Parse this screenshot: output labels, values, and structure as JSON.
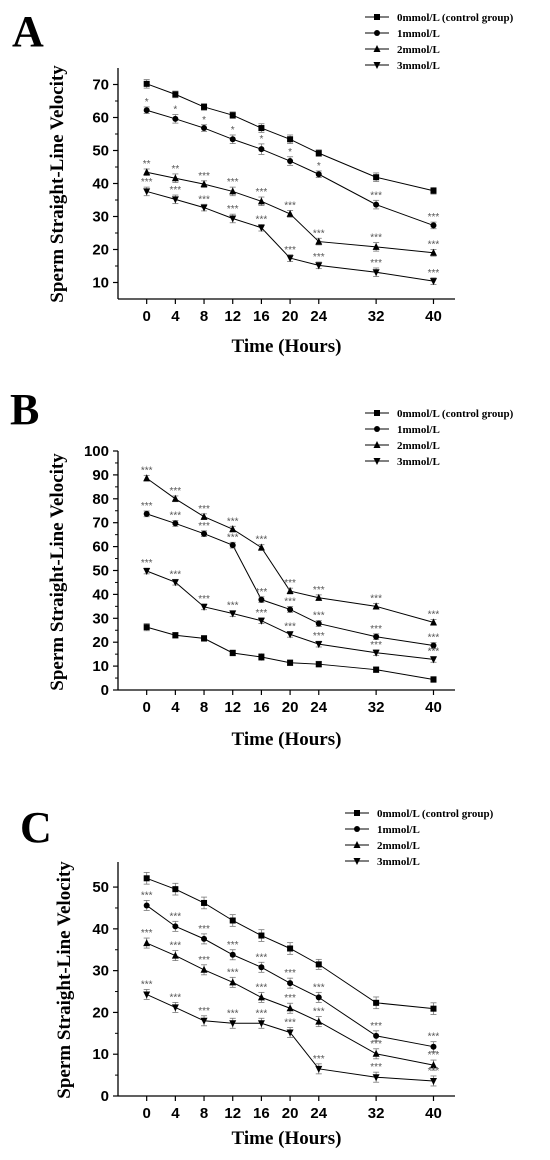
{
  "chart_data": [
    {
      "type": "line",
      "panel_label": "A",
      "xlabel": "Time (Hours)",
      "ylabel": "Sperm Straight-Line Velocity",
      "x": [
        0,
        4,
        8,
        12,
        16,
        20,
        24,
        32,
        40
      ],
      "x_ticks": [
        0,
        4,
        8,
        12,
        16,
        20,
        24,
        32,
        40
      ],
      "xlim": [
        -4,
        43
      ],
      "ylim": [
        5,
        75
      ],
      "y_ticks": [
        10,
        20,
        30,
        40,
        50,
        60,
        70
      ],
      "legend_position": "top-right",
      "series": [
        {
          "name": "0mmol/L (control group)",
          "marker": "square",
          "values": [
            70.2,
            67.0,
            63.2,
            60.7,
            56.8,
            53.4,
            49.2,
            41.9,
            37.8
          ],
          "errors": [
            1.3,
            1.0,
            1.0,
            1.0,
            1.3,
            1.3,
            1.0,
            1.3,
            1.0
          ],
          "annotations": [
            "",
            "",
            "",
            "",
            "",
            "",
            "",
            "",
            ""
          ]
        },
        {
          "name": "1mmol/L",
          "marker": "circle",
          "values": [
            62.2,
            59.6,
            56.8,
            53.4,
            50.4,
            46.8,
            42.8,
            33.6,
            27.3
          ],
          "errors": [
            1.0,
            1.3,
            1.0,
            1.3,
            1.6,
            1.3,
            1.0,
            1.3,
            1.0
          ],
          "annotations": [
            "*",
            "*",
            "*",
            "*",
            "*",
            "*",
            "*",
            "***",
            "***"
          ]
        },
        {
          "name": "2mmol/L",
          "marker": "triangle-up",
          "values": [
            43.4,
            41.6,
            39.8,
            37.6,
            34.6,
            30.8,
            22.4,
            20.8,
            19.0
          ],
          "errors": [
            1.0,
            1.3,
            1.0,
            1.3,
            1.3,
            1.0,
            1.0,
            1.3,
            1.0
          ],
          "annotations": [
            "**",
            "**",
            "***",
            "***",
            "***",
            "***",
            "***",
            "***",
            "***"
          ]
        },
        {
          "name": "3mmol/L",
          "marker": "triangle-down",
          "values": [
            37.6,
            35.2,
            32.7,
            29.4,
            26.6,
            17.4,
            15.2,
            13.1,
            10.4
          ],
          "errors": [
            1.3,
            1.3,
            1.0,
            1.3,
            1.0,
            1.0,
            1.0,
            1.3,
            1.0
          ],
          "annotations": [
            "***",
            "***",
            "***",
            "***",
            "***",
            "***",
            "***",
            "***",
            "***"
          ]
        }
      ]
    },
    {
      "type": "line",
      "panel_label": "B",
      "xlabel": "Time (Hours)",
      "ylabel": "Sperm Straight-Line Velocity",
      "x": [
        0,
        4,
        8,
        12,
        16,
        20,
        24,
        32,
        40
      ],
      "x_ticks": [
        0,
        4,
        8,
        12,
        16,
        20,
        24,
        32,
        40
      ],
      "xlim": [
        -4,
        43
      ],
      "ylim": [
        0,
        100
      ],
      "y_ticks": [
        0,
        10,
        20,
        30,
        40,
        50,
        60,
        70,
        80,
        90,
        100
      ],
      "legend_position": "top-right",
      "series": [
        {
          "name": "0mmol/L (control group)",
          "marker": "square",
          "values": [
            26.3,
            22.9,
            21.6,
            15.5,
            13.8,
            11.4,
            10.8,
            8.5,
            4.4
          ],
          "errors": [
            1.5,
            1.2,
            1.2,
            1.2,
            1.5,
            1.2,
            1.2,
            1.2,
            1.2
          ],
          "annotations": [
            "",
            "",
            "",
            "",
            "",
            "",
            "",
            "",
            ""
          ]
        },
        {
          "name": "1mmol/L",
          "marker": "circle",
          "values": [
            73.7,
            69.7,
            65.4,
            60.6,
            37.8,
            33.7,
            27.8,
            22.3,
            18.6
          ],
          "errors": [
            1.2,
            1.2,
            1.2,
            1.2,
            1.2,
            1.2,
            1.2,
            1.2,
            1.2
          ],
          "annotations": [
            "***",
            "***",
            "***",
            "***",
            "***",
            "***",
            "***",
            "***",
            "***"
          ]
        },
        {
          "name": "2mmol/L",
          "marker": "triangle-up",
          "values": [
            88.6,
            80.0,
            72.5,
            67.3,
            59.6,
            41.4,
            38.6,
            35.0,
            28.3
          ],
          "errors": [
            1.2,
            1.2,
            1.2,
            1.2,
            1.2,
            1.2,
            1.2,
            1.2,
            1.2
          ],
          "annotations": [
            "***",
            "***",
            "***",
            "***",
            "***",
            "***",
            "***",
            "***",
            "***"
          ]
        },
        {
          "name": "3mmol/L",
          "marker": "triangle-down",
          "values": [
            49.8,
            45.1,
            34.8,
            32.0,
            29.0,
            23.3,
            19.2,
            15.6,
            12.8
          ],
          "errors": [
            1.2,
            1.2,
            1.2,
            1.2,
            1.2,
            1.2,
            1.2,
            1.2,
            1.2
          ],
          "annotations": [
            "***",
            "***",
            "***",
            "***",
            "***",
            "***",
            "***",
            "***",
            "***"
          ]
        }
      ]
    },
    {
      "type": "line",
      "panel_label": "C",
      "xlabel": "Time (Hours)",
      "ylabel": "Sperm Straight-Line Velocity",
      "x": [
        0,
        4,
        8,
        12,
        16,
        20,
        24,
        32,
        40
      ],
      "x_ticks": [
        0,
        4,
        8,
        12,
        16,
        20,
        24,
        32,
        40
      ],
      "xlim": [
        -4,
        43
      ],
      "ylim": [
        0,
        56
      ],
      "y_ticks": [
        0,
        10,
        20,
        30,
        40,
        50
      ],
      "legend_position": "top-right",
      "series": [
        {
          "name": "0mmol/L (control group)",
          "marker": "square",
          "values": [
            52.1,
            49.5,
            46.2,
            42.0,
            38.4,
            35.3,
            31.5,
            22.3,
            20.9
          ],
          "errors": [
            1.4,
            1.4,
            1.4,
            1.4,
            1.4,
            1.4,
            1.2,
            1.4,
            1.4
          ],
          "annotations": [
            "",
            "",
            "",
            "",
            "",
            "",
            "",
            "",
            ""
          ]
        },
        {
          "name": "1mmol/L",
          "marker": "circle",
          "values": [
            45.6,
            40.6,
            37.6,
            33.8,
            30.8,
            27.0,
            23.6,
            14.4,
            11.8
          ],
          "errors": [
            1.2,
            1.2,
            1.2,
            1.2,
            1.2,
            1.2,
            1.2,
            1.2,
            1.2
          ],
          "annotations": [
            "***",
            "***",
            "***",
            "***",
            "***",
            "***",
            "***",
            "***",
            "***"
          ]
        },
        {
          "name": "2mmol/L",
          "marker": "triangle-up",
          "values": [
            36.6,
            33.6,
            30.2,
            27.2,
            23.6,
            21.0,
            17.8,
            10.1,
            7.4
          ],
          "errors": [
            1.2,
            1.2,
            1.2,
            1.2,
            1.2,
            1.2,
            1.2,
            1.2,
            1.2
          ],
          "annotations": [
            "***",
            "***",
            "***",
            "***",
            "***",
            "***",
            "***",
            "***",
            "***"
          ]
        },
        {
          "name": "3mmol/L",
          "marker": "triangle-down",
          "values": [
            24.3,
            21.2,
            18.0,
            17.4,
            17.4,
            15.2,
            6.5,
            4.5,
            3.6
          ],
          "errors": [
            1.2,
            1.2,
            1.2,
            1.2,
            1.2,
            1.2,
            1.2,
            1.2,
            1.2
          ],
          "annotations": [
            "***",
            "***",
            "***",
            "***",
            "***",
            "***",
            "***",
            "***",
            "***"
          ]
        }
      ]
    }
  ]
}
